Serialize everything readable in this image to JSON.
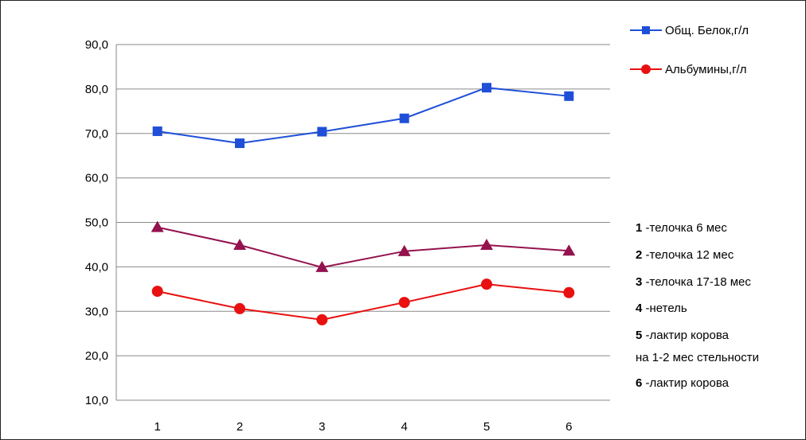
{
  "chart_data": {
    "type": "line",
    "categories": [
      "1",
      "2",
      "3",
      "4",
      "5",
      "6"
    ],
    "ylim": [
      10,
      90
    ],
    "ytick_step": 10,
    "ytick_labels": [
      "10,0",
      "20,0",
      "30,0",
      "40,0",
      "50,0",
      "60,0",
      "70,0",
      "80,0",
      "90,0"
    ],
    "grid": true,
    "legend_position": "top-right",
    "series": [
      {
        "name": "Общ. Белок,г/л",
        "marker": "square",
        "color": "#1f4fd8",
        "values": [
          70.5,
          67.8,
          70.4,
          73.4,
          80.3,
          78.4
        ]
      },
      {
        "name": "Альбумины,г/л",
        "marker": "circle",
        "color": "#e81010",
        "values": [
          34.5,
          30.6,
          28.1,
          32.0,
          36.1,
          34.2
        ]
      },
      {
        "name": "",
        "marker": "triangle",
        "color": "#94124e",
        "values": [
          48.9,
          44.9,
          39.9,
          43.5,
          44.9,
          43.6
        ]
      }
    ],
    "notes": [
      {
        "num": "1",
        "text": " -телочка 6 мес",
        "cont": ""
      },
      {
        "num": "2",
        "text": " -телочка 12 мес",
        "cont": ""
      },
      {
        "num": "3",
        "text": " -телочка 17-18 мес",
        "cont": ""
      },
      {
        "num": "4",
        "text": " -нетель",
        "cont": ""
      },
      {
        "num": "5",
        "text": " -лактир корова",
        "cont": "на 1-2 мес стельности"
      },
      {
        "num": "6",
        "text": " -лактир корова",
        "cont": ""
      }
    ]
  }
}
